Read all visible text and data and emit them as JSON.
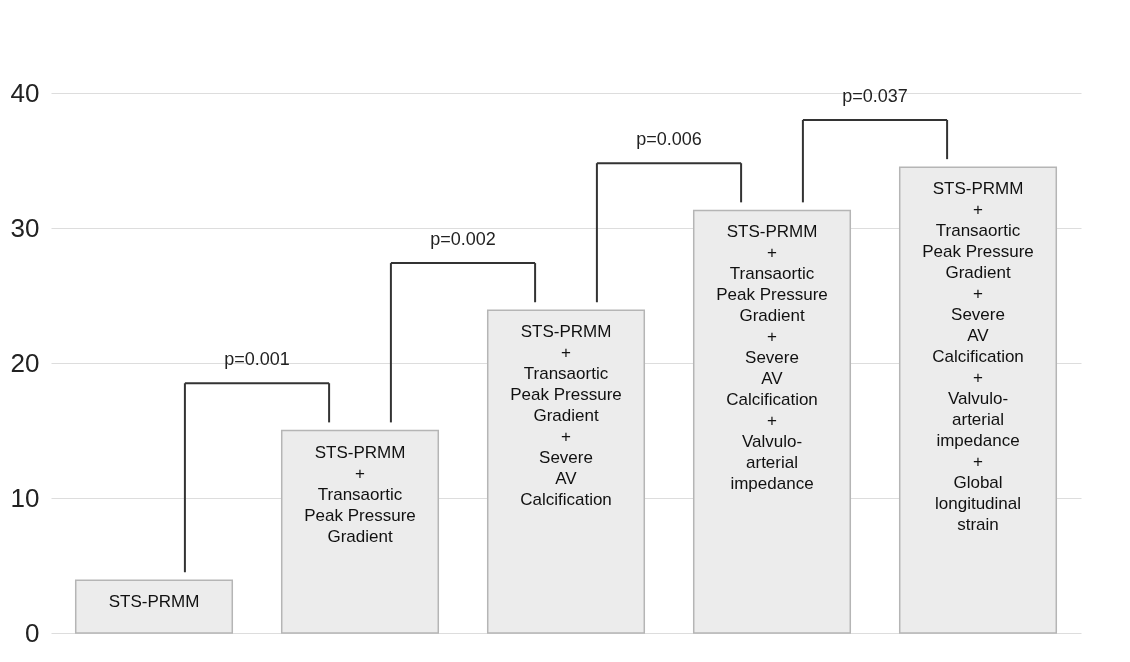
{
  "chart_data": {
    "type": "bar",
    "categories": [
      "STS-PRMM",
      "STS-PRMM\n+\nTransaortic\nPeak Pressure\nGradient",
      "STS-PRMM\n+\nTransaortic\nPeak Pressure\nGradient\n+\nSevere\nAV\nCalcification",
      "STS-PRMM\n+\nTransaortic\nPeak Pressure\nGradient\n+\nSevere\nAV\nCalcification\n+\nValvulo-\narterial\nimpedance",
      "STS-PRMM\n+\nTransaortic\nPeak Pressure\nGradient\n+\nSevere\nAV\nCalcification\n+\nValvulo-\narterial\nimpedance\n+\nGlobal\nlongitudinal\nstrain"
    ],
    "values": [
      3.9,
      15.0,
      23.9,
      31.3,
      34.5
    ],
    "color": "#ececec",
    "ylim": [
      0,
      40
    ],
    "yticks": [
      0,
      10,
      20,
      30,
      40
    ],
    "grid": "y",
    "tick_labels": "y",
    "annotations": [
      "p=0.001",
      "p=0.002",
      "p=0.006",
      "p=0.037"
    ]
  }
}
